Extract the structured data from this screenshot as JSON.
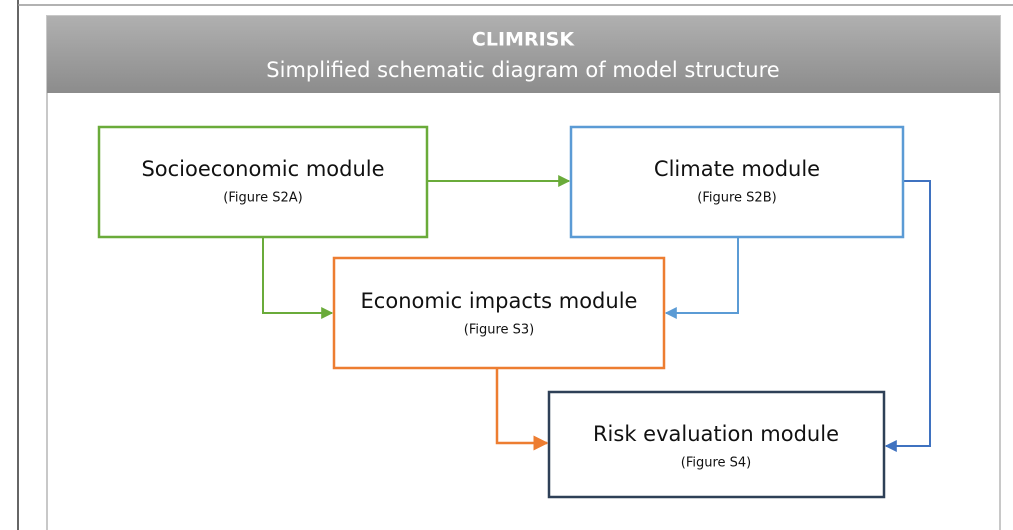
{
  "header": {
    "title": "CLIMRISK",
    "subtitle": "Simplified schematic diagram of model structure"
  },
  "nodes": [
    {
      "label": "Socioeconomic module",
      "sublabel": "(Figure S2A)"
    },
    {
      "label": "Climate module",
      "sublabel": "(Figure S2B)"
    },
    {
      "label": "Economic impacts module",
      "sublabel": "(Figure S3)"
    },
    {
      "label": "Risk evaluation module",
      "sublabel": "(Figure S4)"
    }
  ]
}
